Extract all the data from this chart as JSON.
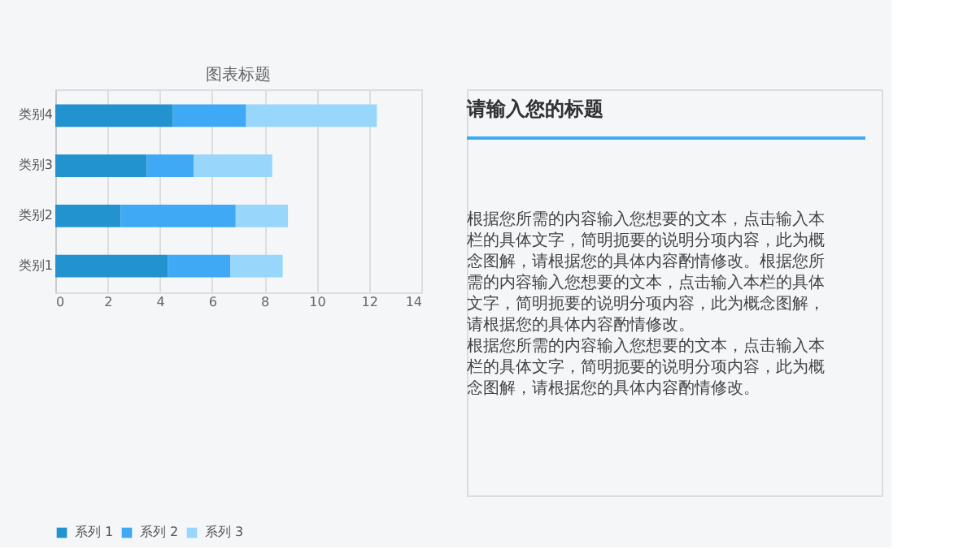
{
  "chart_data": [
    {
      "type": "bar",
      "orientation": "horizontal",
      "stacked": true,
      "title": "图表标题",
      "categories": [
        "类别4",
        "类别3",
        "类别2",
        "类别1"
      ],
      "series": [
        {
          "name": "系列 1",
          "color": "#2293cf",
          "values": [
            4.5,
            3.5,
            2.5,
            4.3
          ]
        },
        {
          "name": "系列 2",
          "color": "#3fa9f5",
          "values": [
            2.8,
            1.8,
            4.4,
            2.4
          ]
        },
        {
          "name": "系列 3",
          "color": "#99d6fb",
          "values": [
            5,
            3,
            2,
            2
          ]
        }
      ],
      "xlim": [
        0,
        14
      ],
      "xticks": [
        0,
        2,
        4,
        6,
        8,
        10,
        12,
        14
      ],
      "grid": "x",
      "legend": "bottom"
    },
    {
      "type": "other",
      "title": "请输入您的标题",
      "annotations": [
        "根据您所需的内容输入您想要的文本，点击输入本栏的具体文字，简明扼要的说明分项内容，此为概念图解，请根据您的具体内容酌情修改。根据您所需的内容输入您想要的文本，点击输入本栏的具体文字，简明扼要的说明分项内容，此为概念图解，请根据您的具体内容酌情修改。",
        "根据您所需的内容输入您想要的文本，点击输入本栏的具体文字，简明扼要的说明分项内容，此为概念图解，请根据您的具体内容酌情修改。"
      ]
    }
  ]
}
